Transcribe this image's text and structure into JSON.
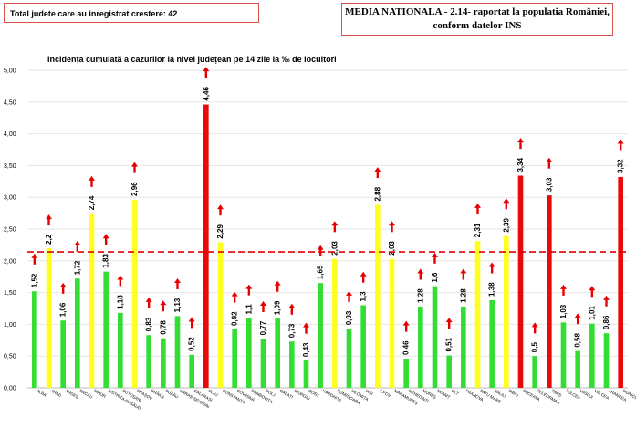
{
  "header": {
    "left_box": "Total judete care au inregistrat crestere: 42",
    "right_box_line1": "MEDIA NATIONALA - 2.14-  raportat la populatia României,",
    "right_box_line2": "conform datelor INS"
  },
  "colors": {
    "green": "#33dd33",
    "yellow": "#ffff22",
    "red": "#e80a0a",
    "arrow": "#e80000",
    "reference_line": "#e00000"
  },
  "chart_data": {
    "type": "bar",
    "title": "Incidența cumulată a cazurilor la nivel județean pe 14 zile la ‰ de locuitori",
    "ylim": [
      0,
      5
    ],
    "yticks": [
      "0,00",
      "0,50",
      "1,00",
      "1,50",
      "2,00",
      "2,50",
      "3,00",
      "3,50",
      "4,00",
      "4,50",
      "5,00"
    ],
    "reference_value": 2.14,
    "categories": [
      "ALBA",
      "ARAD",
      "ARGEȘ",
      "BACĂU",
      "BIHOR",
      "BISTRIȚA-NĂSĂUD",
      "BOTOȘANI",
      "BRAȘOV",
      "BRĂILA",
      "BUZĂU",
      "CARAȘ-SEVERIN",
      "CĂLĂRAȘI",
      "CLUJ",
      "CONSTANȚA",
      "COVASNA",
      "DÂMBOVIȚA",
      "DOLJ",
      "GALAȚI",
      "GIURGIU",
      "GORJ",
      "HARGHITA",
      "HUNEDOARA",
      "IALOMIȚA",
      "IAȘI",
      "ILFOV",
      "MARAMUREȘ",
      "MEHEDINȚI",
      "MUREȘ",
      "NEAMȚ",
      "OLT",
      "PRAHOVA",
      "SATU MARE",
      "SĂLAJ",
      "SIBIU",
      "SUCEAVA",
      "TELEORMAN",
      "TIMIȘ",
      "TULCEA",
      "VASLUI",
      "VÂLCEA",
      "VRANCEA",
      "MUNICIPIUL..."
    ],
    "values": [
      1.52,
      2.2,
      1.06,
      1.72,
      2.74,
      1.83,
      1.18,
      2.96,
      0.83,
      0.78,
      1.13,
      0.52,
      4.46,
      2.29,
      0.92,
      1.1,
      0.77,
      1.09,
      0.73,
      0.43,
      1.65,
      2.03,
      0.93,
      1.3,
      2.88,
      2.03,
      0.46,
      1.28,
      1.6,
      0.51,
      1.28,
      2.31,
      1.38,
      2.39,
      3.34,
      0.5,
      3.03,
      1.03,
      0.58,
      1.01,
      0.86,
      3.32
    ],
    "value_labels": [
      "1,52",
      "2,2",
      "1,06",
      "1,72",
      "2,74",
      "1,83",
      "1,18",
      "2,96",
      "0,83",
      "0,78",
      "1,13",
      "0,52",
      "4,46",
      "2,29",
      "0,92",
      "1,1",
      "0,77",
      "1,09",
      "0,73",
      "0,43",
      "1,65",
      "2,03",
      "0,93",
      "1,3",
      "2,88",
      "2,03",
      "0,46",
      "1,28",
      "1,6",
      "0,51",
      "1,28",
      "2,31",
      "1,38",
      "2,39",
      "3,34",
      "0,5",
      "3,03",
      "1,03",
      "0,58",
      "1,01",
      "0,86",
      "3,32"
    ],
    "bar_colors": [
      "green",
      "yellow",
      "green",
      "green",
      "yellow",
      "green",
      "green",
      "yellow",
      "green",
      "green",
      "green",
      "green",
      "red",
      "yellow",
      "green",
      "green",
      "green",
      "green",
      "green",
      "green",
      "green",
      "yellow",
      "green",
      "green",
      "yellow",
      "yellow",
      "green",
      "green",
      "green",
      "green",
      "green",
      "yellow",
      "green",
      "yellow",
      "red",
      "green",
      "red",
      "green",
      "green",
      "green",
      "green",
      "red"
    ],
    "arrows_up": true,
    "grid": true,
    "legend": "none"
  }
}
